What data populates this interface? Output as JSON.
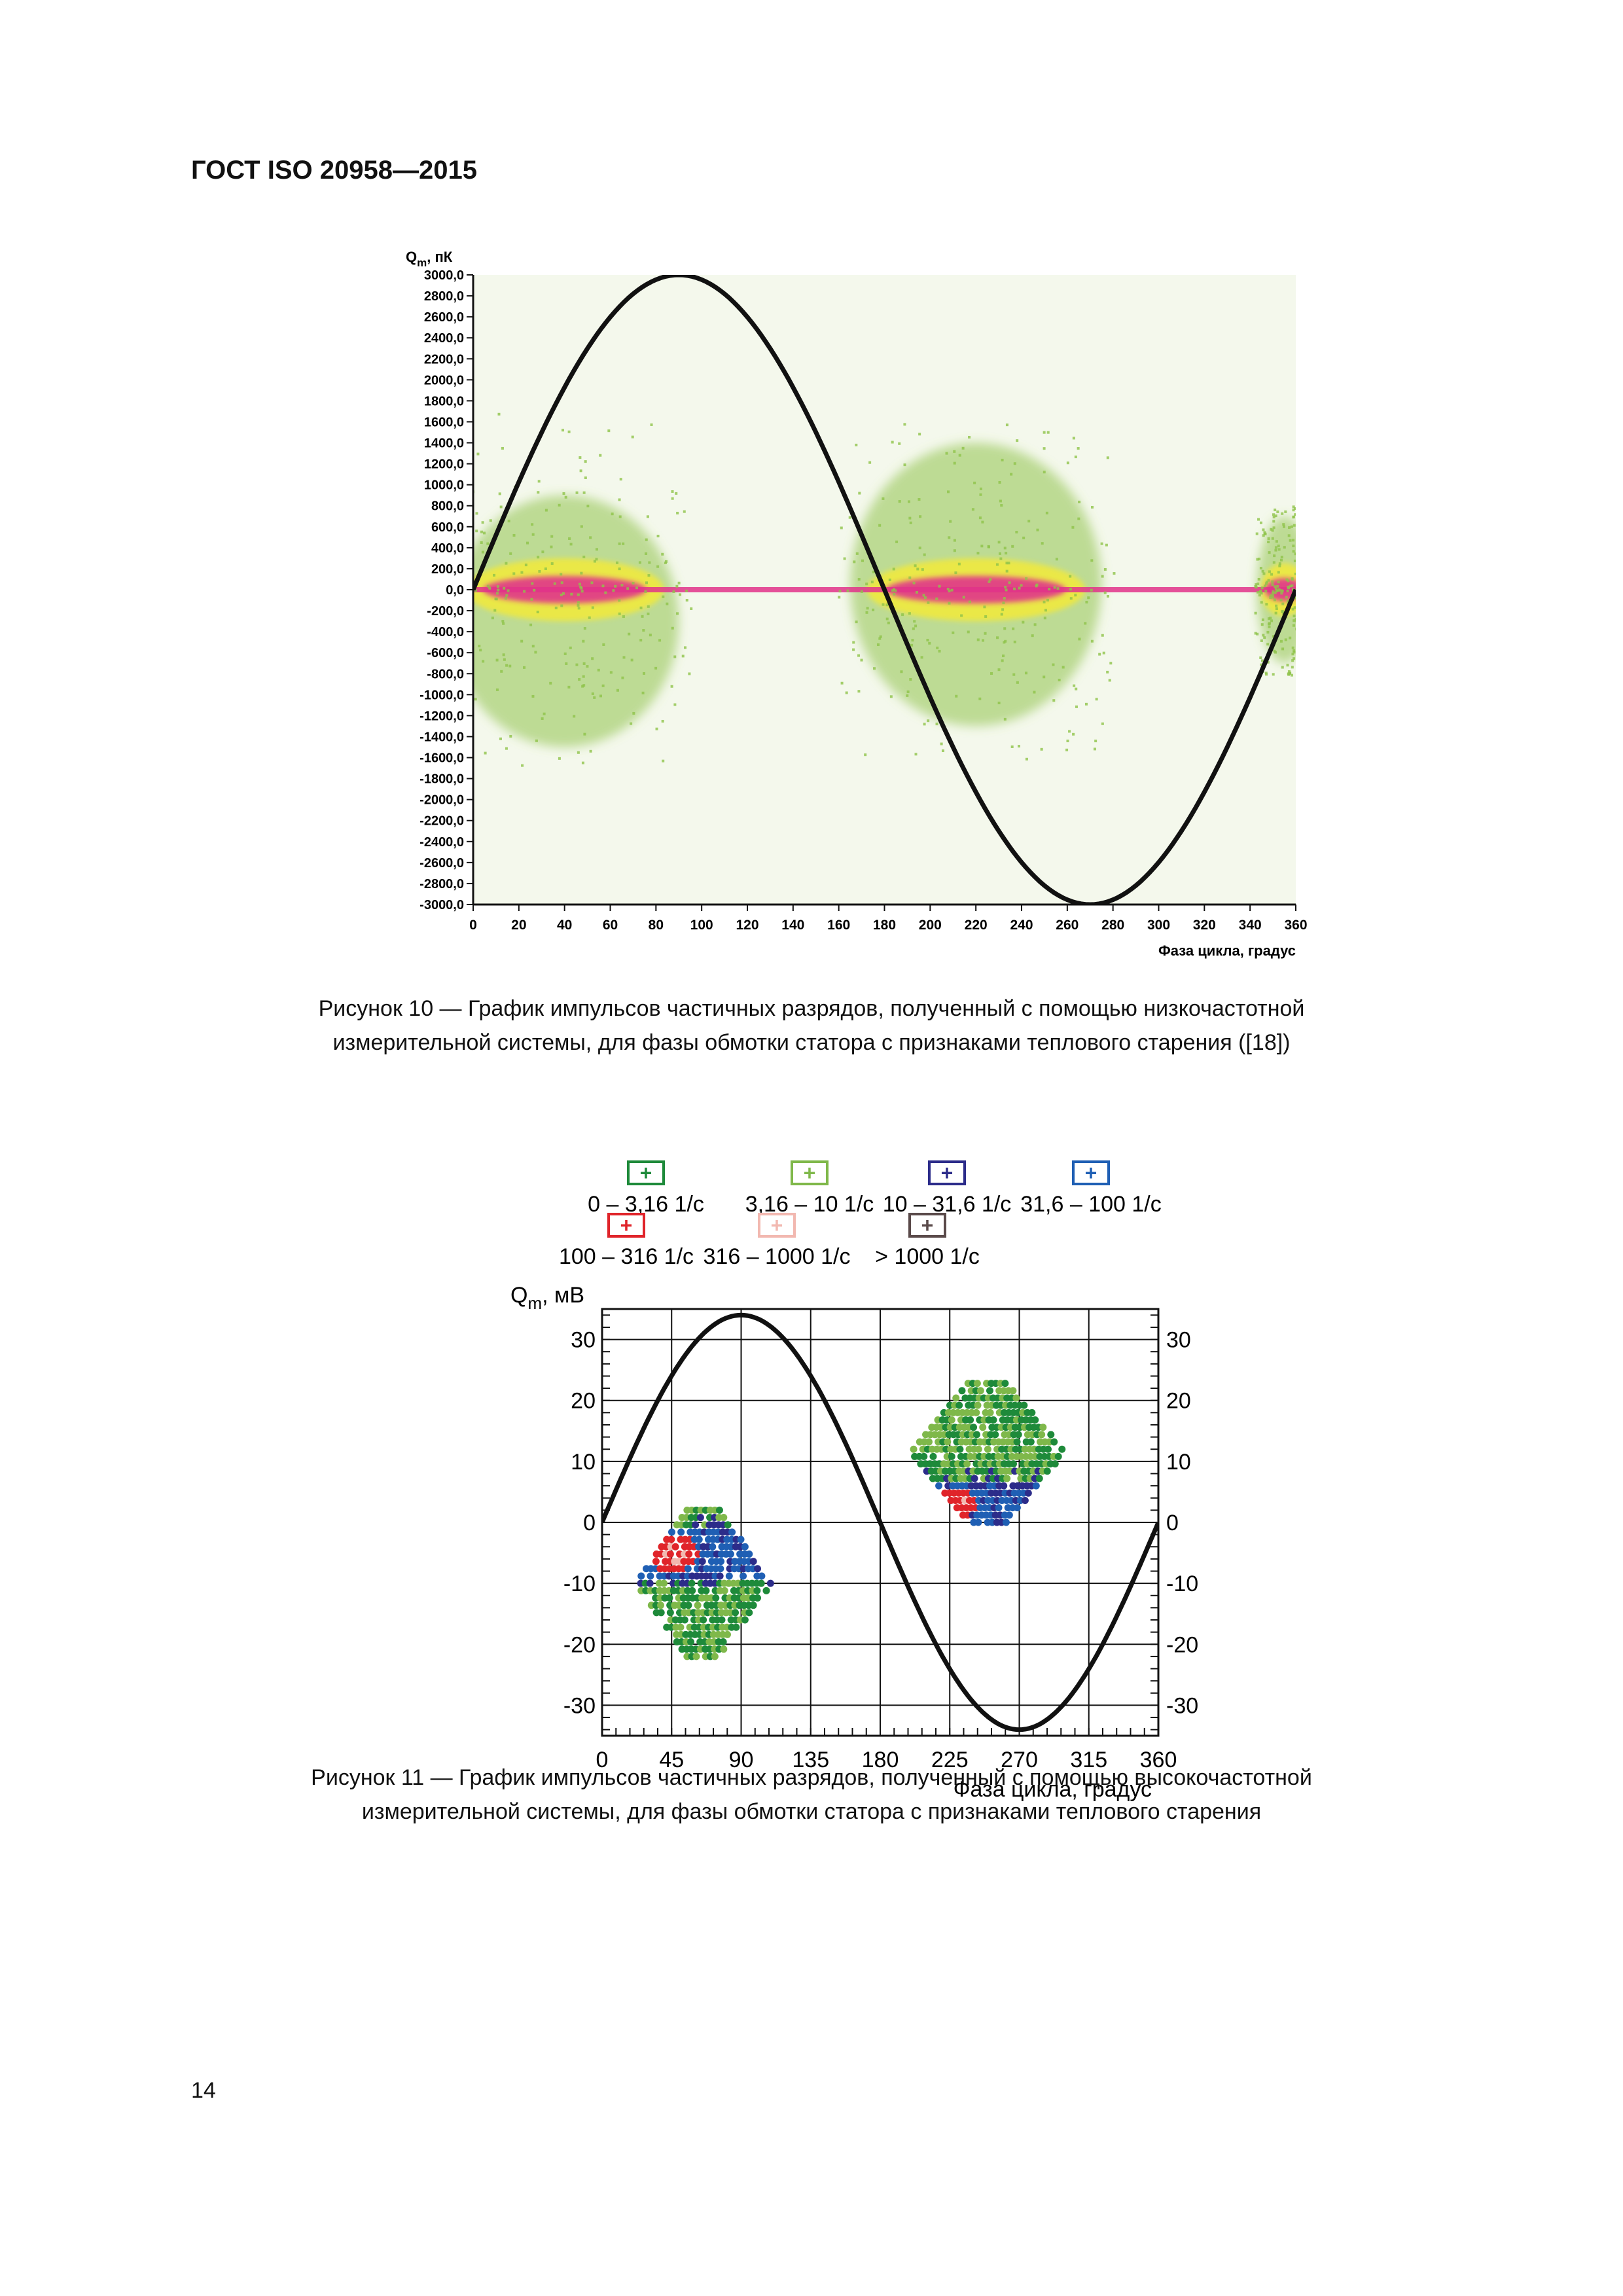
{
  "header": {
    "title": "ГОСТ ISO 20958—2015"
  },
  "figure10": {
    "caption_line1": "Рисунок 10 — График импульсов частичных разрядов, полученный с помощью низкочастотной",
    "caption_line2": "измерительной системы, для фазы обмотки статора с признаками теплового старения ([18])"
  },
  "figure11": {
    "caption_line1": "Рисунок 11 — График импульсов частичных разрядов, полученный с помощью высокочастотной",
    "caption_line2": "измерительной системы, для фазы обмотки статора с признаками теплового старения"
  },
  "page": {
    "number": "14"
  },
  "chart_data": [
    {
      "type": "scatter",
      "chart_name": "Рисунок 10",
      "ylabel_main": "Q",
      "ylabel_sub": "m",
      "ylabel_unit": ", пК",
      "xlabel": "Фаза цикла, градус",
      "xlim": [
        0,
        360
      ],
      "ylim": [
        -3000,
        3000
      ],
      "xticks": [
        "0",
        "20",
        "40",
        "60",
        "80",
        "100",
        "120",
        "140",
        "160",
        "180",
        "200",
        "220",
        "240",
        "260",
        "280",
        "300",
        "320",
        "340",
        "360"
      ],
      "yticks": [
        "3000,0",
        "2800,0",
        "2600,0",
        "2400,0",
        "2200,0",
        "2000,0",
        "1800,0",
        "1600,0",
        "1400,0",
        "1200,0",
        "1000,0",
        "800,0",
        "600,0",
        "400,0",
        "200,0",
        "0,0",
        "-200,0",
        "-400,0",
        "-600,0",
        "-800,0",
        "-1000,0",
        "-1200,0",
        "-1400,0",
        "-1600,0",
        "-1800,0",
        "-2000,0",
        "-2200,0",
        "-2400,0",
        "-2600,0",
        "-2800,0",
        "-3000,0"
      ],
      "grid": false,
      "reference_sine": {
        "amplitude": 3000,
        "phase_start": 0,
        "phase_end": 360,
        "color": "#111111"
      },
      "density_colors": {
        "low": "#8fc34a",
        "mid": "#f2ea3a",
        "high": "#e0338a",
        "background": "#f4f8ec"
      },
      "clusters": [
        {
          "x_center": 40,
          "x_spread": 50,
          "y_extent_pos": 900,
          "y_extent_neg": 1500,
          "core_extent": 130
        },
        {
          "x_center": 220,
          "x_spread": 55,
          "y_extent_pos": 1400,
          "y_extent_neg": 1300,
          "core_extent": 130
        },
        {
          "x_center": 355,
          "x_spread": 12,
          "y_extent_pos": 700,
          "y_extent_neg": 700,
          "core_extent": 110
        }
      ]
    },
    {
      "type": "scatter",
      "chart_name": "Рисунок 11",
      "ylabel_main": "Q",
      "ylabel_sub": "m",
      "ylabel_unit": ", мВ",
      "xlabel": "Фаза цикла, градус",
      "xlim": [
        0,
        360
      ],
      "ylim": [
        -35,
        35
      ],
      "xticks": [
        "0",
        "45",
        "90",
        "135",
        "180",
        "225",
        "270",
        "315",
        "360"
      ],
      "yticks_left": [
        "30",
        "20",
        "10",
        "0",
        "-10",
        "-20",
        "-30"
      ],
      "yticks_right": [
        "30",
        "20",
        "10",
        "0",
        "-10",
        "-20",
        "-30"
      ],
      "grid": true,
      "reference_sine": {
        "amplitude": 34,
        "phase_start": 0,
        "phase_end": 360,
        "color": "#111111"
      },
      "legend": [
        {
          "name": "0 – 3,16 1/c",
          "color": "#1e8a3a"
        },
        {
          "name": "3,16 – 10 1/c",
          "color": "#7fb84a"
        },
        {
          "name": "10 – 31,6 1/c",
          "color": "#2c2c8a"
        },
        {
          "name": "31,6 – 100 1/c",
          "color": "#1f5fb4"
        },
        {
          "name": "100 – 316 1/c",
          "color": "#e0242a"
        },
        {
          "name": "316 – 1000 1/c",
          "color": "#f2b8b0"
        },
        {
          "name": "> 1000 1/c",
          "color": "#5a4a4a"
        }
      ],
      "legend_placement": "top",
      "clusters": [
        {
          "x_range": [
            22,
            110
          ],
          "y_range": [
            -22,
            2
          ],
          "red_center": [
            45,
            -5
          ]
        },
        {
          "x_range": [
            200,
            300
          ],
          "y_range": [
            0,
            23
          ],
          "red_center": [
            225,
            3
          ]
        }
      ]
    }
  ]
}
